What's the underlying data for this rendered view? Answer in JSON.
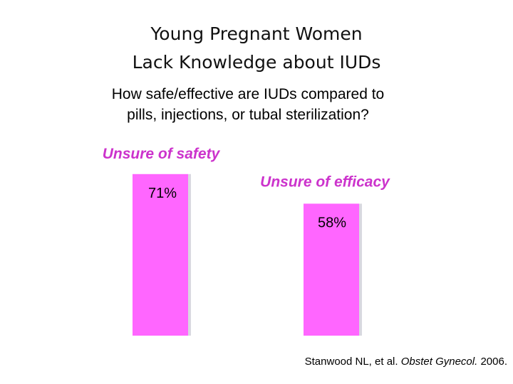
{
  "title": {
    "line1": "Young Pregnant Women",
    "line2": "Lack Knowledge about  IUDs"
  },
  "subtitle": {
    "line1": "How safe/effective are IUDs compared to",
    "line2": "pills, injections, or tubal sterilization?"
  },
  "chart_data": {
    "type": "bar",
    "categories": [
      "Unsure of safety",
      "Unsure of efficacy"
    ],
    "values": [
      71,
      58
    ],
    "value_labels": [
      "71%",
      "58%"
    ],
    "ylim": [
      0,
      100
    ],
    "grid": false,
    "legend": "none",
    "bar_color": "#ff66ff",
    "bar_shadow_color": "#d8d8e0",
    "label_color": "#cc33cc"
  },
  "citation": {
    "authors": "Stanwood NL, et al. ",
    "journal": "Obstet Gynecol.",
    "year": " 2006."
  }
}
